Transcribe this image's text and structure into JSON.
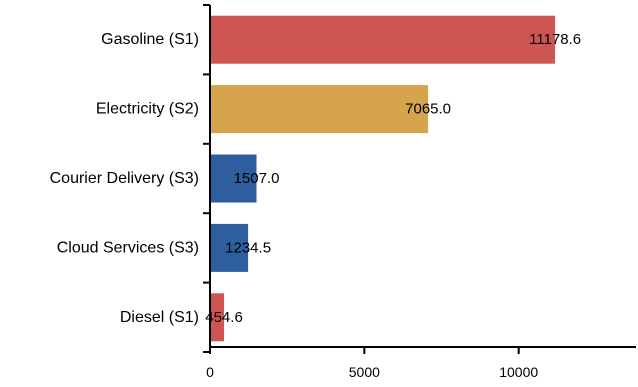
{
  "chart_data": {
    "type": "bar",
    "orientation": "horizontal",
    "categories": [
      "Gasoline (S1)",
      "Electricity (S2)",
      "Courier Delivery (S3)",
      "Cloud Services (S3)",
      "Diesel (S1)"
    ],
    "values": [
      11178.6,
      7065.0,
      1507.0,
      1234.5,
      454.6
    ],
    "data_labels": [
      "11178.6",
      "7065.0",
      "1507.0",
      "1234.5",
      "454.6"
    ],
    "bar_colors": [
      "#cd5552",
      "#d6a44c",
      "#2f5e9e",
      "#2f5e9e",
      "#cd5552"
    ],
    "xlim": [
      0,
      13800
    ],
    "xticks": [
      0,
      5000,
      10000
    ],
    "xtick_labels": [
      "0",
      "5000",
      "10000"
    ],
    "grid": false,
    "legend": "none"
  }
}
